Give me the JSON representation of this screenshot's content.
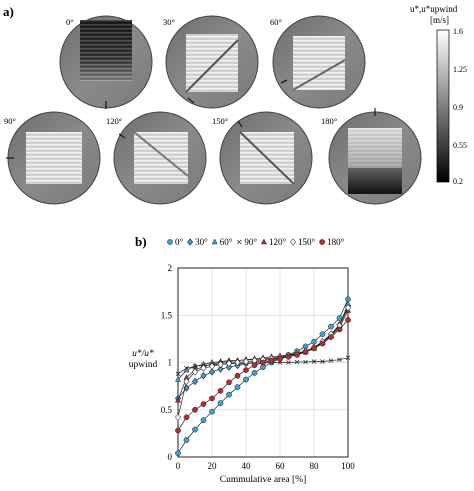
{
  "panel_a_label": "a)",
  "panel_b_label": "b)",
  "angles": [
    "0°",
    "30°",
    "60°",
    "90°",
    "120°",
    "150°",
    "180°"
  ],
  "colorbar": {
    "title_line1": "u*,u*upwind",
    "title_line2": "[m/s]",
    "ticks": [
      "1.6",
      "1.25",
      "0.9",
      "0.55",
      "0.2"
    ],
    "range": [
      0.2,
      1.6
    ],
    "colormap": "grayscale"
  },
  "chart_data": {
    "type": "line",
    "xlabel": "Cummulative area [%]",
    "ylabel_line1": "u*/u*",
    "ylabel_line2": "upwind",
    "xlim": [
      0,
      100
    ],
    "ylim": [
      0,
      2
    ],
    "xticks": [
      "0",
      "20",
      "40",
      "60",
      "80",
      "100"
    ],
    "yticks": [
      "0",
      "0.5",
      "1",
      "1.5",
      "2"
    ],
    "grid": true,
    "legend_position": "top",
    "x": [
      0,
      5,
      10,
      15,
      20,
      25,
      30,
      35,
      40,
      45,
      50,
      55,
      60,
      65,
      70,
      75,
      80,
      85,
      90,
      95,
      100
    ],
    "series": [
      {
        "name": "0°",
        "color": "#3aa0d8",
        "marker": "circle",
        "values": [
          0.04,
          0.18,
          0.29,
          0.39,
          0.48,
          0.57,
          0.66,
          0.74,
          0.82,
          0.89,
          0.95,
          1.0,
          1.04,
          1.08,
          1.12,
          1.17,
          1.22,
          1.3,
          1.38,
          1.47,
          1.67
        ]
      },
      {
        "name": "30°",
        "color": "#3aa0d8",
        "marker": "diamond",
        "values": [
          0.62,
          0.73,
          0.8,
          0.86,
          0.9,
          0.93,
          0.95,
          0.97,
          0.99,
          1.0,
          1.02,
          1.03,
          1.05,
          1.07,
          1.09,
          1.12,
          1.16,
          1.22,
          1.3,
          1.4,
          1.6
        ]
      },
      {
        "name": "60°",
        "color": "#3aa0d8",
        "marker": "triangle",
        "values": [
          0.82,
          0.92,
          0.96,
          0.98,
          1.0,
          1.01,
          1.02,
          1.02,
          1.03,
          1.03,
          1.04,
          1.05,
          1.06,
          1.07,
          1.09,
          1.11,
          1.15,
          1.21,
          1.29,
          1.39,
          1.62
        ]
      },
      {
        "name": "90°",
        "color": "#555555",
        "marker": "x",
        "values": [
          0.88,
          0.94,
          0.96,
          0.97,
          0.975,
          0.98,
          0.985,
          0.99,
          0.99,
          0.995,
          0.995,
          1.0,
          1.0,
          1.0,
          1.005,
          1.005,
          1.01,
          1.01,
          1.02,
          1.03,
          1.05
        ]
      },
      {
        "name": "120°",
        "color": "#c0282d",
        "marker": "triangle",
        "values": [
          0.6,
          0.84,
          0.92,
          0.96,
          0.98,
          1.0,
          1.01,
          1.02,
          1.03,
          1.04,
          1.05,
          1.06,
          1.07,
          1.08,
          1.1,
          1.12,
          1.16,
          1.21,
          1.28,
          1.37,
          1.55
        ]
      },
      {
        "name": "150°",
        "color": "#ffffff",
        "marker": "diamond",
        "values": [
          0.42,
          0.8,
          0.9,
          0.94,
          0.96,
          0.98,
          0.99,
          1.0,
          1.01,
          1.02,
          1.03,
          1.04,
          1.05,
          1.07,
          1.09,
          1.12,
          1.16,
          1.22,
          1.3,
          1.39,
          1.58
        ]
      },
      {
        "name": "180°",
        "color": "#c0282d",
        "marker": "circle",
        "values": [
          0.28,
          0.42,
          0.5,
          0.56,
          0.62,
          0.7,
          0.79,
          0.86,
          0.92,
          0.97,
          1.0,
          1.02,
          1.04,
          1.06,
          1.08,
          1.11,
          1.15,
          1.2,
          1.27,
          1.35,
          1.45
        ]
      }
    ]
  }
}
